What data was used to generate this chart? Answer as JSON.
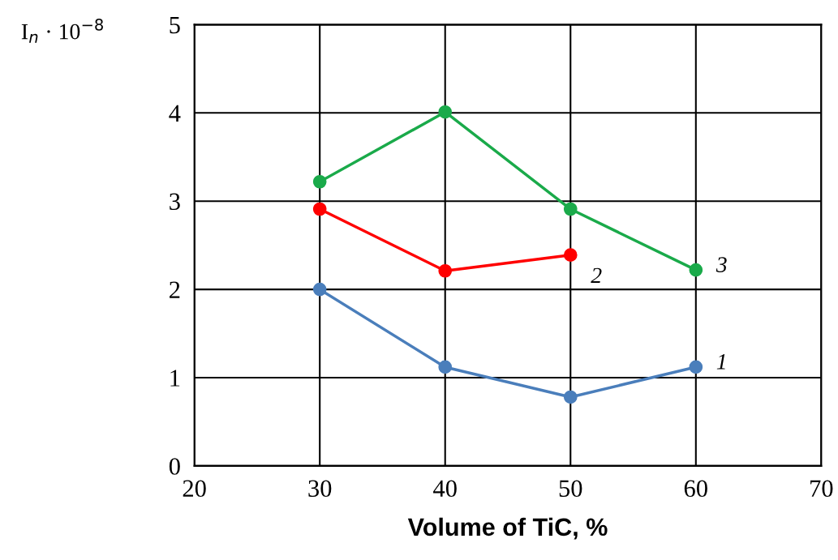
{
  "chart_data": {
    "type": "line",
    "xlabel": "Volume of TiC, %",
    "ylabel": "I$_{n}$ · 10$^{−8}$",
    "xlim": [
      20,
      70
    ],
    "xticks": [
      20,
      30,
      40,
      50,
      60,
      70
    ],
    "ylim": [
      0,
      5
    ],
    "yticks": [
      0,
      1,
      2,
      3,
      4,
      5
    ],
    "grid": true,
    "marker": "circle",
    "line_style": "solid",
    "legend": false,
    "series": [
      {
        "name": "1",
        "color": "#4a7ebb",
        "x": [
          30,
          40,
          50,
          60
        ],
        "values": [
          2.0,
          1.12,
          0.78,
          1.12
        ]
      },
      {
        "name": "2",
        "color": "#ff0000",
        "x": [
          30,
          40,
          50
        ],
        "values": [
          2.91,
          2.21,
          2.39
        ]
      },
      {
        "name": "3",
        "color": "#1aaa4a",
        "x": [
          30,
          40,
          50,
          60
        ],
        "values": [
          3.22,
          4.01,
          2.91,
          2.22
        ]
      }
    ]
  }
}
